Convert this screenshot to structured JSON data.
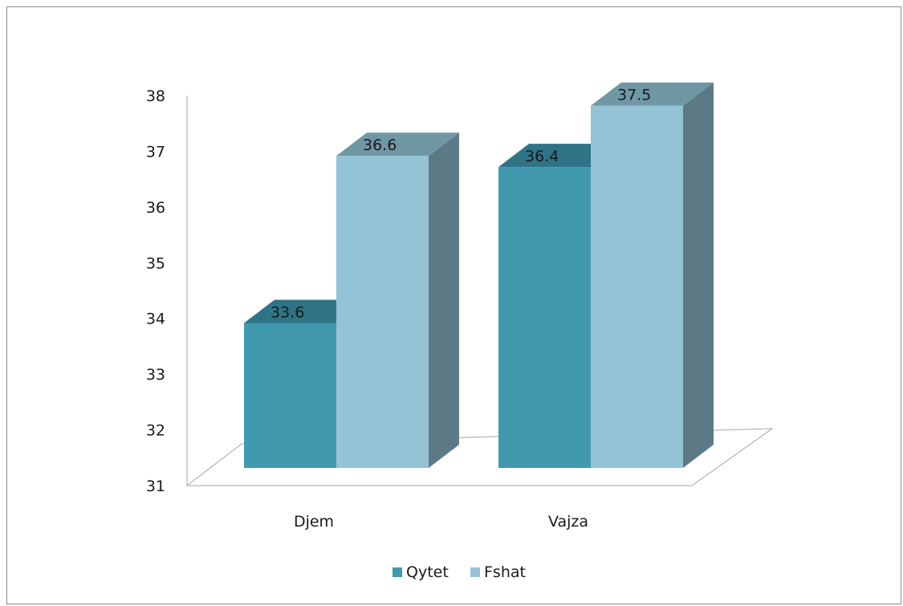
{
  "chart_data": {
    "type": "bar",
    "style": "3d-clustered-column",
    "categories": [
      "Djem",
      "Vajza"
    ],
    "series": [
      {
        "name": "Qytet",
        "values": [
          33.6,
          36.4
        ]
      },
      {
        "name": "Fshat",
        "values": [
          36.6,
          37.5
        ]
      }
    ],
    "data_labels": [
      [
        "33.6",
        "36.4"
      ],
      [
        "36.6",
        "37.5"
      ]
    ],
    "title": "",
    "xlabel": "",
    "ylabel": "",
    "ylim": [
      31,
      38
    ],
    "yticks": [
      31,
      32,
      33,
      34,
      35,
      36,
      37,
      38
    ],
    "ytick_labels": [
      "31",
      "32",
      "33",
      "34",
      "35",
      "36",
      "37",
      "38"
    ],
    "grid": false,
    "legend_position": "bottom",
    "colors": {
      "Qytet": {
        "front": "#4199b0",
        "top": "#2f7486",
        "side": "#2e6f80"
      },
      "Fshat": {
        "front": "#94c3d5",
        "top": "#6f97a4",
        "side": "#5c7a85"
      },
      "axis": "#a6a6a6",
      "text": "#1a1a1a"
    }
  }
}
